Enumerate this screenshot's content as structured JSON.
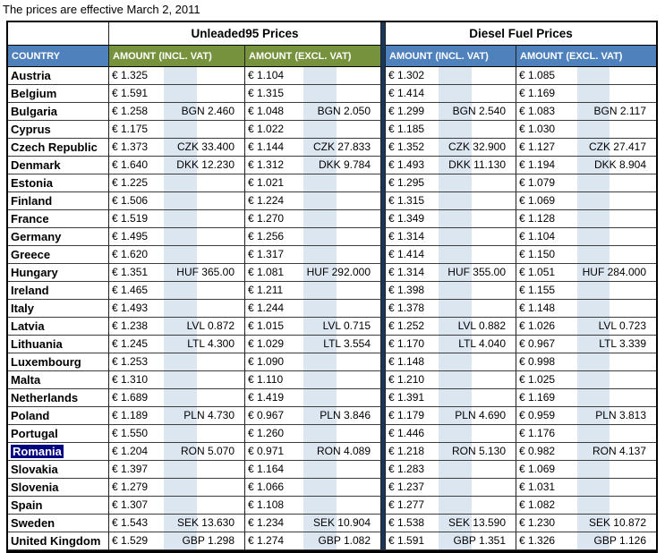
{
  "title": "The prices are effective March 2, 2011",
  "table": {
    "group_headers": {
      "unleaded": "Unleaded95 Prices",
      "diesel": "Diesel Fuel Prices"
    },
    "column_headers": {
      "country": "COUNTRY",
      "incl_vat": "AMOUNT (INCL. VAT)",
      "excl_vat": "AMOUNT (EXCL. VAT)"
    },
    "colors": {
      "country_header_bg": "#4F81BD",
      "unleaded_header_bg": "#76923C",
      "diesel_header_bg": "#4F81BD",
      "stripe": "#DCE6F1",
      "divider": "#17375D",
      "selection_bg": "#000080"
    },
    "selected_country": "Romania",
    "rows": [
      {
        "country": "Austria",
        "u_incl": "€ 1.325",
        "u_incl_local": "",
        "u_excl": "€ 1.104",
        "u_excl_local": "",
        "d_incl": "€ 1.302",
        "d_incl_local": "",
        "d_excl": "€ 1.085",
        "d_excl_local": ""
      },
      {
        "country": "Belgium",
        "u_incl": "€ 1.591",
        "u_incl_local": "",
        "u_excl": "€ 1.315",
        "u_excl_local": "",
        "d_incl": "€ 1.414",
        "d_incl_local": "",
        "d_excl": "€ 1.169",
        "d_excl_local": ""
      },
      {
        "country": "Bulgaria",
        "u_incl": "€ 1.258",
        "u_incl_local": "BGN 2.460",
        "u_excl": "€ 1.048",
        "u_excl_local": "BGN 2.050",
        "d_incl": "€ 1.299",
        "d_incl_local": "BGN 2.540",
        "d_excl": "€ 1.083",
        "d_excl_local": "BGN 2.117"
      },
      {
        "country": "Cyprus",
        "u_incl": "€ 1.175",
        "u_incl_local": "",
        "u_excl": "€ 1.022",
        "u_excl_local": "",
        "d_incl": "€ 1.185",
        "d_incl_local": "",
        "d_excl": "€ 1.030",
        "d_excl_local": ""
      },
      {
        "country": "Czech Republic",
        "u_incl": "€ 1.373",
        "u_incl_local": "CZK 33.400",
        "u_excl": "€ 1.144",
        "u_excl_local": "CZK 27.833",
        "d_incl": "€ 1.352",
        "d_incl_local": "CZK 32.900",
        "d_excl": "€ 1.127",
        "d_excl_local": "CZK 27.417"
      },
      {
        "country": "Denmark",
        "u_incl": "€ 1.640",
        "u_incl_local": "DKK 12.230",
        "u_excl": "€ 1.312",
        "u_excl_local": "DKK 9.784",
        "d_incl": "€ 1.493",
        "d_incl_local": "DKK 11.130",
        "d_excl": "€ 1.194",
        "d_excl_local": "DKK 8.904"
      },
      {
        "country": "Estonia",
        "u_incl": "€ 1.225",
        "u_incl_local": "",
        "u_excl": "€ 1.021",
        "u_excl_local": "",
        "d_incl": "€ 1.295",
        "d_incl_local": "",
        "d_excl": "€ 1.079",
        "d_excl_local": ""
      },
      {
        "country": "Finland",
        "u_incl": "€ 1.506",
        "u_incl_local": "",
        "u_excl": "€ 1.224",
        "u_excl_local": "",
        "d_incl": "€ 1.315",
        "d_incl_local": "",
        "d_excl": "€ 1.069",
        "d_excl_local": ""
      },
      {
        "country": "France",
        "u_incl": "€ 1.519",
        "u_incl_local": "",
        "u_excl": "€ 1.270",
        "u_excl_local": "",
        "d_incl": "€ 1.349",
        "d_incl_local": "",
        "d_excl": "€ 1.128",
        "d_excl_local": ""
      },
      {
        "country": "Germany",
        "u_incl": "€ 1.495",
        "u_incl_local": "",
        "u_excl": "€ 1.256",
        "u_excl_local": "",
        "d_incl": "€ 1.314",
        "d_incl_local": "",
        "d_excl": "€ 1.104",
        "d_excl_local": ""
      },
      {
        "country": "Greece",
        "u_incl": "€ 1.620",
        "u_incl_local": "",
        "u_excl": "€ 1.317",
        "u_excl_local": "",
        "d_incl": "€ 1.414",
        "d_incl_local": "",
        "d_excl": "€ 1.150",
        "d_excl_local": ""
      },
      {
        "country": "Hungary",
        "u_incl": "€ 1.351",
        "u_incl_local": "HUF 365.00",
        "u_excl": "€ 1.081",
        "u_excl_local": "HUF 292.000",
        "d_incl": "€ 1.314",
        "d_incl_local": "HUF 355.00",
        "d_excl": "€ 1.051",
        "d_excl_local": "HUF 284.000"
      },
      {
        "country": "Ireland",
        "u_incl": "€ 1.465",
        "u_incl_local": "",
        "u_excl": "€ 1.211",
        "u_excl_local": "",
        "d_incl": "€ 1.398",
        "d_incl_local": "",
        "d_excl": "€ 1.155",
        "d_excl_local": ""
      },
      {
        "country": "Italy",
        "u_incl": "€ 1.493",
        "u_incl_local": "",
        "u_excl": "€ 1.244",
        "u_excl_local": "",
        "d_incl": "€ 1.378",
        "d_incl_local": "",
        "d_excl": "€ 1.148",
        "d_excl_local": ""
      },
      {
        "country": "Latvia",
        "u_incl": "€ 1.238",
        "u_incl_local": "LVL 0.872",
        "u_excl": "€ 1.015",
        "u_excl_local": "LVL 0.715",
        "d_incl": "€ 1.252",
        "d_incl_local": "LVL 0.882",
        "d_excl": "€ 1.026",
        "d_excl_local": "LVL 0.723"
      },
      {
        "country": "Lithuania",
        "u_incl": "€ 1.245",
        "u_incl_local": "LTL 4.300",
        "u_excl": "€ 1.029",
        "u_excl_local": "LTL 3.554",
        "d_incl": "€ 1.170",
        "d_incl_local": "LTL 4.040",
        "d_excl": "€ 0.967",
        "d_excl_local": "LTL 3.339"
      },
      {
        "country": "Luxembourg",
        "u_incl": "€ 1.253",
        "u_incl_local": "",
        "u_excl": "€ 1.090",
        "u_excl_local": "",
        "d_incl": "€ 1.148",
        "d_incl_local": "",
        "d_excl": "€ 0.998",
        "d_excl_local": ""
      },
      {
        "country": "Malta",
        "u_incl": "€ 1.310",
        "u_incl_local": "",
        "u_excl": "€ 1.110",
        "u_excl_local": "",
        "d_incl": "€ 1.210",
        "d_incl_local": "",
        "d_excl": "€ 1.025",
        "d_excl_local": ""
      },
      {
        "country": "Netherlands",
        "u_incl": "€ 1.689",
        "u_incl_local": "",
        "u_excl": "€ 1.419",
        "u_excl_local": "",
        "d_incl": "€ 1.391",
        "d_incl_local": "",
        "d_excl": "€ 1.169",
        "d_excl_local": ""
      },
      {
        "country": "Poland",
        "u_incl": "€ 1.189",
        "u_incl_local": "PLN 4.730",
        "u_excl": "€ 0.967",
        "u_excl_local": "PLN 3.846",
        "d_incl": "€ 1.179",
        "d_incl_local": "PLN 4.690",
        "d_excl": "€ 0.959",
        "d_excl_local": "PLN 3.813"
      },
      {
        "country": "Portugal",
        "u_incl": "€ 1.550",
        "u_incl_local": "",
        "u_excl": "€ 1.260",
        "u_excl_local": "",
        "d_incl": "€ 1.446",
        "d_incl_local": "",
        "d_excl": "€ 1.176",
        "d_excl_local": ""
      },
      {
        "country": "Romania",
        "u_incl": "€ 1.204",
        "u_incl_local": "RON 5.070",
        "u_excl": "€ 0.971",
        "u_excl_local": "RON 4.089",
        "d_incl": "€ 1.218",
        "d_incl_local": "RON 5.130",
        "d_excl": "€ 0.982",
        "d_excl_local": "RON 4.137"
      },
      {
        "country": "Slovakia",
        "u_incl": "€ 1.397",
        "u_incl_local": "",
        "u_excl": "€ 1.164",
        "u_excl_local": "",
        "d_incl": "€ 1.283",
        "d_incl_local": "",
        "d_excl": "€ 1.069",
        "d_excl_local": ""
      },
      {
        "country": "Slovenia",
        "u_incl": "€ 1.279",
        "u_incl_local": "",
        "u_excl": "€ 1.066",
        "u_excl_local": "",
        "d_incl": "€ 1.237",
        "d_incl_local": "",
        "d_excl": "€ 1.031",
        "d_excl_local": ""
      },
      {
        "country": "Spain",
        "u_incl": "€ 1.307",
        "u_incl_local": "",
        "u_excl": "€ 1.108",
        "u_excl_local": "",
        "d_incl": "€ 1.277",
        "d_incl_local": "",
        "d_excl": "€ 1.082",
        "d_excl_local": ""
      },
      {
        "country": "Sweden",
        "u_incl": "€ 1.543",
        "u_incl_local": "SEK 13.630",
        "u_excl": "€ 1.234",
        "u_excl_local": "SEK 10.904",
        "d_incl": "€ 1.538",
        "d_incl_local": "SEK 13.590",
        "d_excl": "€ 1.230",
        "d_excl_local": "SEK 10.872"
      },
      {
        "country": "United Kingdom",
        "u_incl": "€ 1.529",
        "u_incl_local": "GBP 1.298",
        "u_excl": "€ 1.274",
        "u_excl_local": "GBP 1.082",
        "d_incl": "€ 1.591",
        "d_incl_local": "GBP 1.351",
        "d_excl": "€ 1.326",
        "d_excl_local": "GBP 1.126"
      }
    ]
  }
}
